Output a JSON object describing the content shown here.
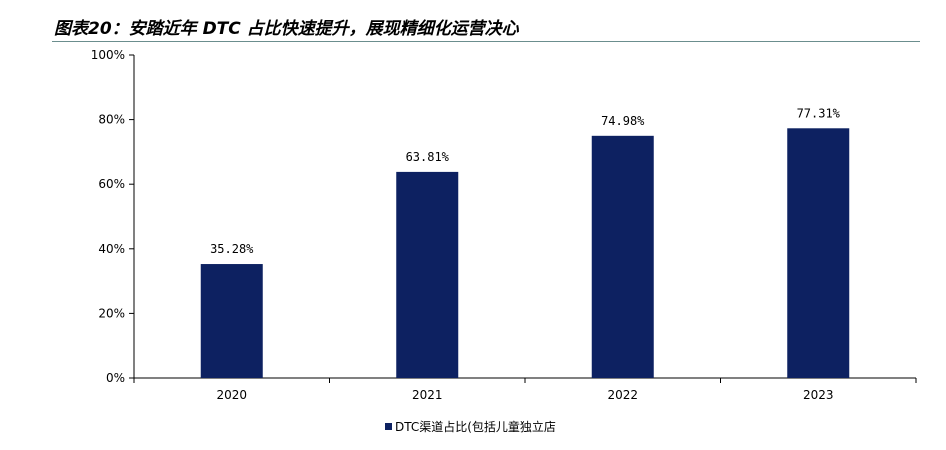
{
  "title": "图表20：安踏近年 DTC 占比快速提升，展现精细化运营决心",
  "colors": {
    "bar": "#0d2161",
    "axis": "#000000",
    "rule": "#6b8e8e"
  },
  "chart_data": {
    "type": "bar",
    "categories": [
      "2020",
      "2021",
      "2022",
      "2023"
    ],
    "series": [
      {
        "name": "DTC渠道占比(包括儿童独立店",
        "values": [
          35.28,
          63.81,
          74.98,
          77.31
        ]
      }
    ],
    "data_labels": [
      "35.28%",
      "63.81%",
      "74.98%",
      "77.31%"
    ],
    "ylim": [
      0,
      100
    ],
    "yticks": [
      0,
      20,
      40,
      60,
      80,
      100
    ],
    "ytick_labels": [
      "0%",
      "20%",
      "40%",
      "60%",
      "80%",
      "100%"
    ],
    "grid": false,
    "legend": "bottom-center"
  }
}
